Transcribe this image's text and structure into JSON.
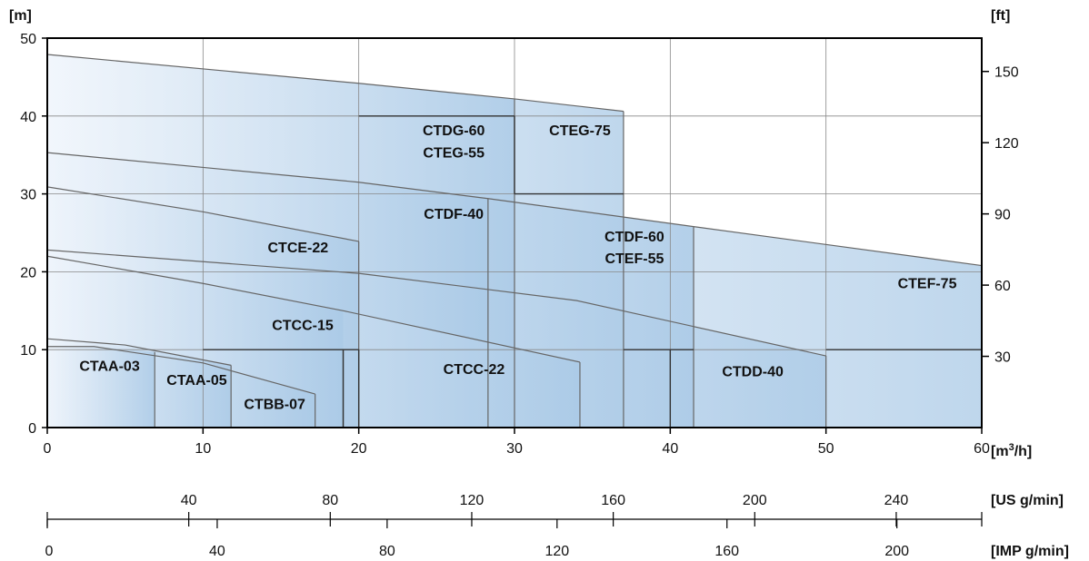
{
  "chart_data": {
    "type": "area",
    "units": {
      "y_left": "[m]",
      "y_right": "[ft]",
      "x_main": "[m³/h]",
      "x_us": "[US g/min]",
      "x_imp": "[IMP g/min]"
    },
    "xlim": [
      0,
      60
    ],
    "ylim": [
      0,
      50
    ],
    "x_ticks": [
      0,
      10,
      20,
      30,
      40,
      50,
      60
    ],
    "y_ticks": [
      0,
      10,
      20,
      30,
      40,
      50
    ],
    "y_right_ticks": [
      30,
      60,
      90,
      120,
      150
    ],
    "us_ticks": [
      40,
      80,
      120,
      160,
      200,
      240
    ],
    "imp_ticks": [
      0,
      40,
      80,
      120,
      160,
      200
    ],
    "grid": true,
    "colors": {
      "fill_light": "#eef4fb",
      "fill_dark": "#a9c9e6",
      "curve": "#666666",
      "axis": "#000000"
    },
    "regions": [
      {
        "name": "CTAA-03",
        "label_at": [
          4,
          8
        ],
        "bottom_left": [
          0,
          0
        ],
        "top_curve": [
          [
            0,
            10.4
          ],
          [
            3,
            10.4
          ],
          [
            6.9,
            9.7
          ]
        ],
        "right": 6.9
      },
      {
        "name": "CTAA-05",
        "label_at": [
          9.6,
          6.2
        ],
        "top_curve": [
          [
            0,
            11.4
          ],
          [
            5,
            10.6
          ],
          [
            11.8,
            8
          ]
        ],
        "right": 11.8
      },
      {
        "name": "CTBB-07",
        "label_at": [
          14.6,
          3.1
        ],
        "top_curve": [
          [
            3,
            10.4
          ],
          [
            10,
            8.3
          ],
          [
            17.2,
            4.3
          ]
        ],
        "right": 17.2
      },
      {
        "name": "CTCC-15",
        "label_at": [
          16.4,
          13.2
        ],
        "top_curve": [
          [
            0,
            22
          ],
          [
            10,
            18.5
          ],
          [
            19,
            15
          ]
        ],
        "right": 19
      },
      {
        "name": "CTCE-22",
        "label_at": [
          16.1,
          23.2
        ],
        "top_curve": [
          [
            0,
            30.9
          ],
          [
            10,
            27.7
          ],
          [
            20,
            23.9
          ]
        ],
        "right": 20
      },
      {
        "name": "CTCC-22",
        "label_at": [
          27.4,
          7.6
        ],
        "top_curve": [
          [
            0,
            22
          ],
          [
            20,
            14.5
          ],
          [
            34.2,
            8.4
          ]
        ],
        "right": 34.2
      },
      {
        "name": "CTDF-40",
        "label_at": [
          26.1,
          27.5
        ],
        "top_curve": [
          [
            0,
            35.3
          ],
          [
            20,
            31.5
          ],
          [
            28.3,
            29.4
          ]
        ],
        "right": 28.3
      },
      {
        "name": "CTDG-60",
        "label_at": [
          26.1,
          38.2
        ],
        "top_curve": [
          [
            0,
            47.9
          ],
          [
            20,
            44.2
          ],
          [
            30,
            42.2
          ]
        ],
        "right": 30
      },
      {
        "name": "CTEG-55",
        "label_at": [
          26.1,
          35.4
        ],
        "top_curve": [],
        "right": 30
      },
      {
        "name": "CTEG-75",
        "label_at": [
          34.2,
          38.2
        ],
        "top_curve": [
          [
            30,
            42.2
          ],
          [
            37,
            40.6
          ]
        ],
        "right": 37
      },
      {
        "name": "CTDF-60",
        "label_at": [
          37.7,
          24.6
        ],
        "top_curve": [
          [
            28.3,
            29.4
          ],
          [
            41.5,
            25.8
          ]
        ],
        "right": 41.5
      },
      {
        "name": "CTEF-55",
        "label_at": [
          37.7,
          21.8
        ],
        "top_curve": [],
        "right": 41.5
      },
      {
        "name": "CTDD-40",
        "label_at": [
          45.3,
          7.3
        ],
        "top_curve": [
          [
            20,
            19.8
          ],
          [
            34,
            16.3
          ],
          [
            50,
            9.2
          ]
        ],
        "right": 50
      },
      {
        "name": "CTEF-75",
        "label_at": [
          56.5,
          18.6
        ],
        "top_curve": [
          [
            41.5,
            25.8
          ],
          [
            60,
            20.8
          ]
        ],
        "right": 60
      }
    ]
  }
}
